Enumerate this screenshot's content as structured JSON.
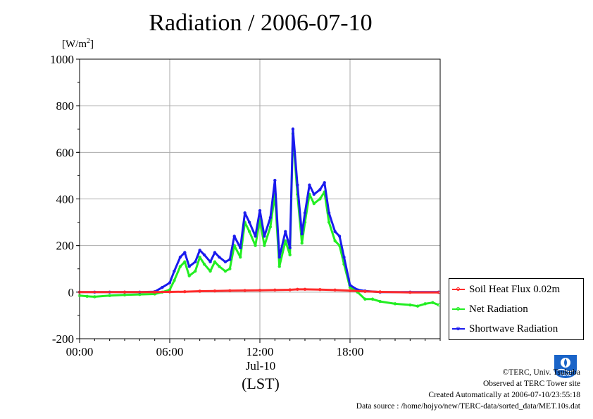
{
  "title": "Radiation / 2006-07-10",
  "units": {
    "prefix": "[W/m",
    "sup": "2",
    "suffix": "]"
  },
  "axes": {
    "date_label": "Jul-10",
    "tz_label": "(LST)"
  },
  "legend": [
    {
      "label": "Soil Heat Flux 0.02m",
      "color": "#ff2a2a"
    },
    {
      "label": "Net Radiation",
      "color": "#22ee22"
    },
    {
      "label": "Shortwave Radiation",
      "color": "#1a1aee"
    }
  ],
  "credits": {
    "line1": "©TERC, Univ. Tsukuba",
    "line2": "Observed at TERC Tower site",
    "line3": "Created Automatically at 2006-07-10/23:55:18",
    "line4": "Data source : /home/hojyo/new/TERC-data/sorted_data/MET.10s.dat"
  },
  "logo": {
    "text": "TERC",
    "icon": "terc-logo-icon",
    "color": "#1a64c8"
  },
  "chart_data": {
    "type": "line",
    "title": "Radiation / 2006-07-10",
    "xlabel": "Jul-10 (LST)",
    "ylabel": "[W/m2]",
    "xlim": [
      0,
      24
    ],
    "ylim": [
      -200,
      1000
    ],
    "x_ticks": [
      0,
      6,
      12,
      18
    ],
    "x_tick_labels": [
      "00:00",
      "06:00",
      "12:00",
      "18:00"
    ],
    "y_ticks": [
      -200,
      0,
      200,
      400,
      600,
      800,
      1000
    ],
    "y_tick_labels": [
      "-200",
      "0",
      "200",
      "400",
      "600",
      "800",
      "1000"
    ],
    "grid": true,
    "legend_position": "bottom-right outside",
    "series": [
      {
        "name": "Soil Heat Flux 0.02m",
        "color": "#ff2a2a",
        "x": [
          0,
          3,
          5,
          6,
          7,
          8,
          9,
          10,
          11,
          12,
          13,
          14,
          14.5,
          15,
          16,
          17,
          18,
          19,
          20,
          22,
          23.9
        ],
        "y": [
          0,
          0,
          0,
          1,
          2,
          4,
          5,
          6,
          7,
          8,
          9,
          10,
          12,
          12,
          11,
          9,
          6,
          3,
          1,
          -1,
          -1
        ]
      },
      {
        "name": "Net Radiation",
        "color": "#22ee22",
        "x": [
          0,
          0.5,
          1,
          2,
          3,
          4,
          5,
          5.5,
          6,
          6.3,
          6.7,
          7,
          7.3,
          7.7,
          8,
          8.3,
          8.7,
          9,
          9.3,
          9.7,
          10,
          10.3,
          10.7,
          11,
          11.3,
          11.7,
          12,
          12.3,
          12.7,
          13,
          13.3,
          13.7,
          14,
          14.2,
          14.5,
          14.8,
          15,
          15.3,
          15.6,
          16,
          16.3,
          16.6,
          17,
          17.3,
          17.6,
          18,
          18.5,
          19,
          19.5,
          20,
          21,
          22,
          22.5,
          23,
          23.5,
          23.9
        ],
        "y": [
          -15,
          -18,
          -20,
          -15,
          -12,
          -10,
          -8,
          0,
          10,
          50,
          110,
          130,
          70,
          90,
          150,
          120,
          90,
          130,
          110,
          90,
          100,
          200,
          150,
          300,
          260,
          200,
          310,
          200,
          280,
          420,
          110,
          220,
          160,
          680,
          420,
          210,
          300,
          420,
          380,
          400,
          430,
          300,
          220,
          200,
          120,
          20,
          0,
          -30,
          -30,
          -40,
          -50,
          -55,
          -60,
          -50,
          -45,
          -55
        ]
      },
      {
        "name": "Shortwave Radiation",
        "color": "#1a1aee",
        "x": [
          0,
          1,
          2,
          3,
          4,
          5,
          5.5,
          6,
          6.3,
          6.7,
          7,
          7.3,
          7.7,
          8,
          8.3,
          8.7,
          9,
          9.3,
          9.7,
          10,
          10.3,
          10.7,
          11,
          11.3,
          11.7,
          12,
          12.3,
          12.7,
          13,
          13.3,
          13.7,
          14,
          14.2,
          14.5,
          14.8,
          15,
          15.3,
          15.6,
          16,
          16.3,
          16.6,
          17,
          17.3,
          17.6,
          18,
          18.5,
          19,
          20,
          22,
          23.9
        ],
        "y": [
          0,
          0,
          0,
          0,
          0,
          2,
          20,
          40,
          90,
          150,
          170,
          110,
          130,
          180,
          160,
          130,
          170,
          150,
          130,
          140,
          240,
          190,
          340,
          300,
          240,
          350,
          240,
          320,
          480,
          150,
          260,
          190,
          700,
          460,
          250,
          340,
          460,
          420,
          440,
          470,
          340,
          260,
          240,
          150,
          30,
          10,
          5,
          0,
          0,
          0
        ]
      }
    ]
  }
}
